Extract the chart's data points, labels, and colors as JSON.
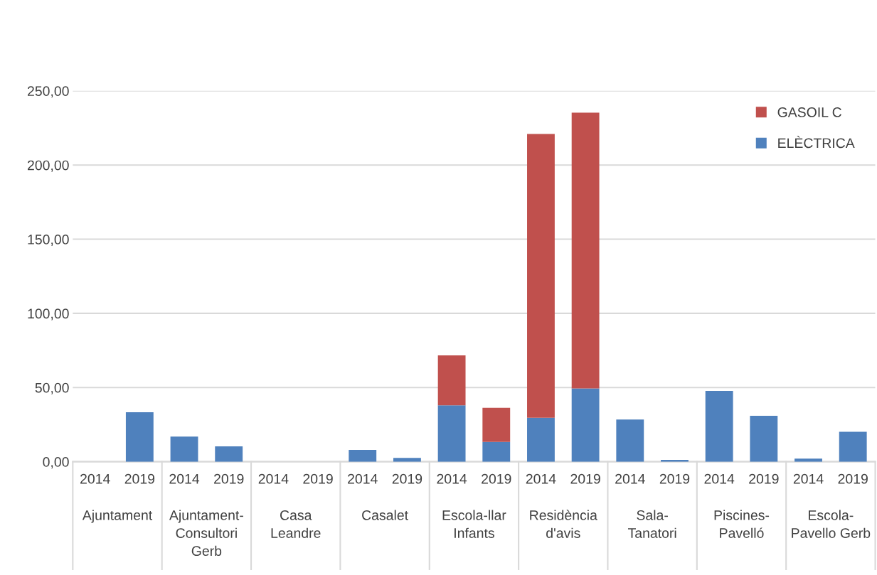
{
  "chart_data": {
    "type": "bar",
    "stacked": true,
    "categories": [
      "2014",
      "2019",
      "2014",
      "2019",
      "2014",
      "2019",
      "2014",
      "2019",
      "2014",
      "2019",
      "2014",
      "2019",
      "2014",
      "2019",
      "2014",
      "2019",
      "2014",
      "2019"
    ],
    "series": [
      {
        "name": "ELÈCTRICA",
        "color": "#4f81bd",
        "values": [
          null,
          33.3,
          17.0,
          10.4,
          null,
          null,
          8.0,
          2.6,
          38.0,
          13.4,
          29.7,
          49.4,
          28.5,
          1.2,
          47.7,
          31.0,
          2.1,
          20.2
        ]
      },
      {
        "name": "GASOIL C",
        "color": "#c0504d",
        "values": [
          null,
          null,
          null,
          null,
          null,
          null,
          null,
          null,
          33.7,
          23.0,
          191.2,
          185.9,
          null,
          null,
          null,
          null,
          null,
          null
        ]
      }
    ],
    "annotations": [
      "Ajuntament",
      "Ajuntament-\nConsultori\nGerb",
      "Casa\nLeandre",
      "Casalet",
      "Escola-llar\nInfants",
      "Residència\nd'avis",
      "Sala-\nTanatori",
      "Piscines-\nPavelló",
      "Escola-\nPavello Gerb"
    ],
    "ylim": [
      0,
      250
    ],
    "yticks": [
      {
        "value": 0,
        "label": "0,00"
      },
      {
        "value": 50,
        "label": "50,00"
      },
      {
        "value": 100,
        "label": "100,00"
      },
      {
        "value": 150,
        "label": "150,00"
      },
      {
        "value": 200,
        "label": "200,00"
      },
      {
        "value": 250,
        "label": "250,00"
      }
    ],
    "grid": "y",
    "legend": "top right"
  }
}
